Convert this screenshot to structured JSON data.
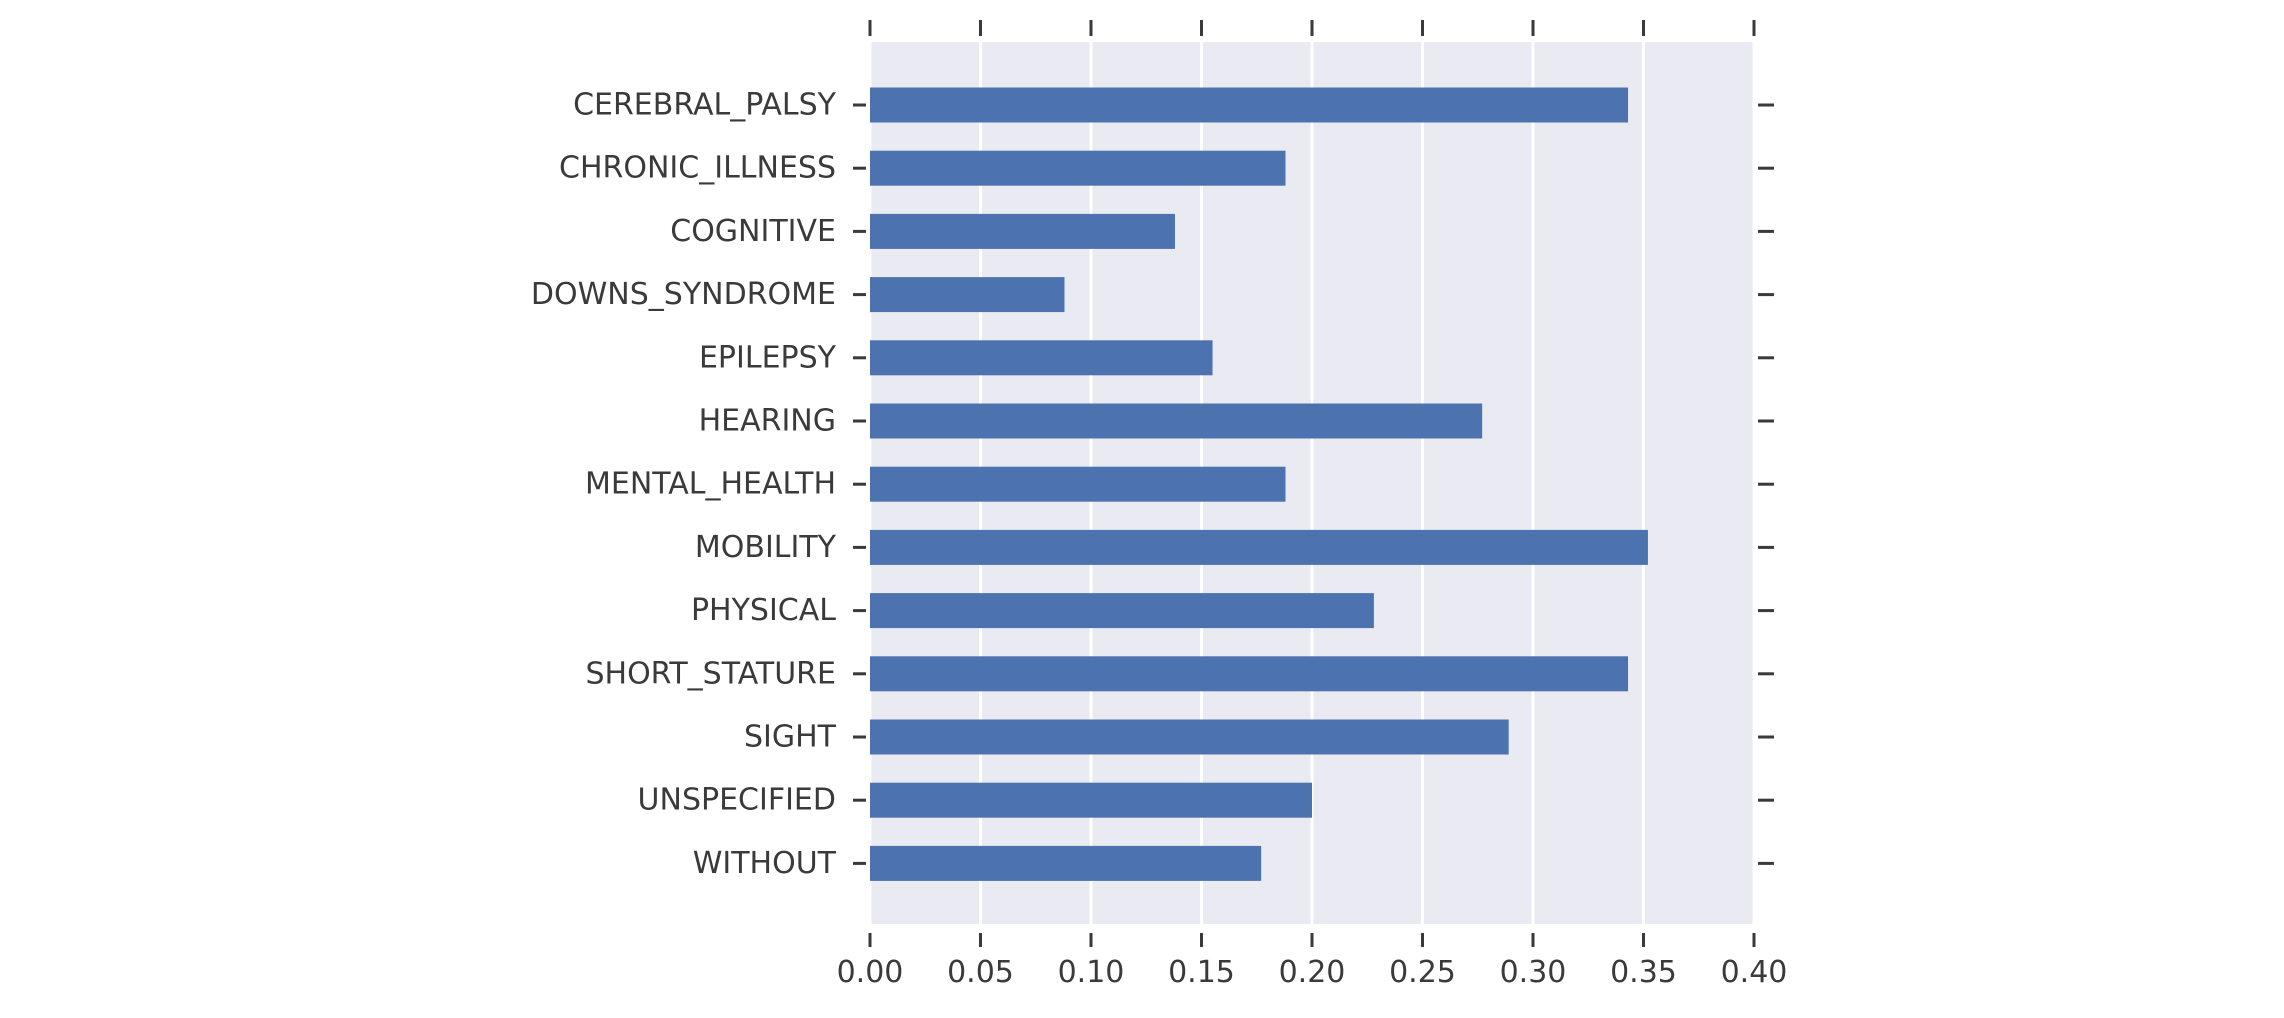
{
  "chart_data": {
    "type": "bar",
    "orientation": "horizontal",
    "categories": [
      "CEREBRAL_PALSY",
      "CHRONIC_ILLNESS",
      "COGNITIVE",
      "DOWNS_SYNDROME",
      "EPILEPSY",
      "HEARING",
      "MENTAL_HEALTH",
      "MOBILITY",
      "PHYSICAL",
      "SHORT_STATURE",
      "SIGHT",
      "UNSPECIFIED",
      "WITHOUT"
    ],
    "values": [
      0.343,
      0.188,
      0.138,
      0.088,
      0.155,
      0.277,
      0.188,
      0.352,
      0.228,
      0.343,
      0.289,
      0.2,
      0.177
    ],
    "xlim": [
      0,
      0.4
    ],
    "xticks": [
      "0.00",
      "0.05",
      "0.10",
      "0.15",
      "0.20",
      "0.25",
      "0.30",
      "0.35",
      "0.40"
    ],
    "title": "",
    "xlabel": "",
    "ylabel": "",
    "grid": true,
    "colors": {
      "bar": "#4c72b0",
      "plot_background": "#eaeaf2",
      "grid": "#ffffff",
      "text": "#3a3a3a"
    }
  }
}
